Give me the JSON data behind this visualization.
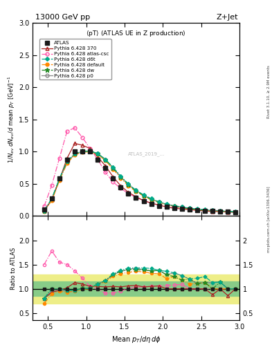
{
  "title_top": "13000 GeV pp",
  "title_right": "Z+Jet",
  "subtitle": "<pT> (ATLAS UE in Z production)",
  "ylabel_main": "1/N_{ev} dN_{ev}/d mean p_T [GeV]^{-1}",
  "ylabel_ratio": "Ratio to ATLAS",
  "xlabel": "Mean p_{T}/d\\eta d\\phi",
  "right_label_top": "Rivet 3.1.10, ≥ 2.9M events",
  "right_label_bottom": "mcplots.cern.ch [arXiv:1306.3436]",
  "watermark": "ATLAS_2019_...",
  "xlim": [
    0.3,
    3.0
  ],
  "ylim_main": [
    0.0,
    3.0
  ],
  "ylim_ratio": [
    0.35,
    2.5
  ],
  "x_atlas": [
    0.45,
    0.55,
    0.65,
    0.75,
    0.85,
    0.95,
    1.05,
    1.15,
    1.25,
    1.35,
    1.45,
    1.55,
    1.65,
    1.75,
    1.85,
    1.95,
    2.05,
    2.15,
    2.25,
    2.35,
    2.45,
    2.55,
    2.65,
    2.75,
    2.85,
    2.95
  ],
  "y_atlas": [
    0.1,
    0.27,
    0.58,
    0.88,
    1.0,
    1.0,
    1.0,
    0.88,
    0.75,
    0.58,
    0.45,
    0.35,
    0.28,
    0.23,
    0.19,
    0.16,
    0.14,
    0.12,
    0.11,
    0.1,
    0.09,
    0.08,
    0.08,
    0.07,
    0.07,
    0.06
  ],
  "x_370": [
    0.45,
    0.55,
    0.65,
    0.75,
    0.85,
    0.95,
    1.05,
    1.15,
    1.25,
    1.35,
    1.45,
    1.55,
    1.65,
    1.75,
    1.85,
    1.95,
    2.05,
    2.15,
    2.25,
    2.35,
    2.45,
    2.55,
    2.65,
    2.75,
    2.85,
    2.95
  ],
  "y_370": [
    0.08,
    0.25,
    0.56,
    0.9,
    1.13,
    1.1,
    1.05,
    0.92,
    0.78,
    0.61,
    0.47,
    0.37,
    0.3,
    0.24,
    0.2,
    0.17,
    0.14,
    0.12,
    0.11,
    0.1,
    0.09,
    0.08,
    0.07,
    0.07,
    0.06,
    0.06
  ],
  "x_atlascsc": [
    0.45,
    0.55,
    0.65,
    0.75,
    0.85,
    0.95,
    1.05,
    1.15,
    1.25,
    1.35,
    1.45,
    1.55,
    1.65,
    1.75,
    1.85,
    1.95,
    2.05,
    2.15,
    2.25,
    2.35,
    2.45,
    2.55,
    2.65,
    2.75,
    2.85,
    2.95
  ],
  "y_atlascsc": [
    0.15,
    0.48,
    0.9,
    1.32,
    1.37,
    1.22,
    1.05,
    0.88,
    0.68,
    0.53,
    0.43,
    0.35,
    0.29,
    0.24,
    0.2,
    0.17,
    0.15,
    0.13,
    0.12,
    0.1,
    0.09,
    0.08,
    0.08,
    0.07,
    0.07,
    0.06
  ],
  "x_d6t": [
    0.45,
    0.55,
    0.65,
    0.75,
    0.85,
    0.95,
    1.05,
    1.15,
    1.25,
    1.35,
    1.45,
    1.55,
    1.65,
    1.75,
    1.85,
    1.95,
    2.05,
    2.15,
    2.25,
    2.35,
    2.45,
    2.55,
    2.65,
    2.75,
    2.85,
    2.95
  ],
  "y_d6t": [
    0.08,
    0.27,
    0.58,
    0.85,
    0.97,
    1.0,
    1.01,
    0.97,
    0.88,
    0.76,
    0.62,
    0.5,
    0.4,
    0.33,
    0.27,
    0.22,
    0.19,
    0.16,
    0.14,
    0.12,
    0.11,
    0.1,
    0.09,
    0.08,
    0.07,
    0.07
  ],
  "x_default": [
    0.45,
    0.55,
    0.65,
    0.75,
    0.85,
    0.95,
    1.05,
    1.15,
    1.25,
    1.35,
    1.45,
    1.55,
    1.65,
    1.75,
    1.85,
    1.95,
    2.05,
    2.15,
    2.25,
    2.35,
    2.45,
    2.55,
    2.65,
    2.75,
    2.85,
    2.95
  ],
  "y_default": [
    0.07,
    0.24,
    0.55,
    0.82,
    0.95,
    0.99,
    1.0,
    0.96,
    0.86,
    0.73,
    0.59,
    0.47,
    0.38,
    0.31,
    0.25,
    0.21,
    0.17,
    0.15,
    0.13,
    0.11,
    0.1,
    0.09,
    0.08,
    0.07,
    0.07,
    0.06
  ],
  "x_dw": [
    0.45,
    0.55,
    0.65,
    0.75,
    0.85,
    0.95,
    1.05,
    1.15,
    1.25,
    1.35,
    1.45,
    1.55,
    1.65,
    1.75,
    1.85,
    1.95,
    2.05,
    2.15,
    2.25,
    2.35,
    2.45,
    2.55,
    2.65,
    2.75,
    2.85,
    2.95
  ],
  "y_dw": [
    0.08,
    0.27,
    0.58,
    0.85,
    0.97,
    1.01,
    1.01,
    0.97,
    0.88,
    0.75,
    0.61,
    0.49,
    0.39,
    0.32,
    0.26,
    0.22,
    0.18,
    0.15,
    0.13,
    0.12,
    0.1,
    0.09,
    0.08,
    0.08,
    0.07,
    0.06
  ],
  "x_p0": [
    0.45,
    0.55,
    0.65,
    0.75,
    0.85,
    0.95,
    1.05,
    1.15,
    1.25,
    1.35,
    1.45,
    1.55,
    1.65,
    1.75,
    1.85,
    1.95,
    2.05,
    2.15,
    2.25,
    2.35,
    2.45,
    2.55,
    2.65,
    2.75,
    2.85,
    2.95
  ],
  "y_p0": [
    0.08,
    0.26,
    0.57,
    0.84,
    0.96,
    1.0,
    1.01,
    0.97,
    0.88,
    0.75,
    0.61,
    0.49,
    0.4,
    0.32,
    0.26,
    0.22,
    0.18,
    0.16,
    0.14,
    0.12,
    0.1,
    0.09,
    0.09,
    0.08,
    0.07,
    0.06
  ],
  "color_atlas": "#1a1a1a",
  "color_370": "#aa2222",
  "color_atlascsc": "#ff55aa",
  "color_d6t": "#00aa88",
  "color_default": "#ff8800",
  "color_dw": "#228822",
  "color_p0": "#888888",
  "band_yellow_lo": 0.7,
  "band_yellow_hi": 1.3,
  "band_green_lo": 0.85,
  "band_green_hi": 1.15,
  "ratio_370": [
    0.8,
    0.93,
    0.97,
    1.02,
    1.13,
    1.1,
    1.05,
    1.05,
    1.04,
    1.05,
    1.04,
    1.06,
    1.07,
    1.04,
    1.05,
    1.06,
    1.0,
    1.0,
    1.0,
    1.0,
    1.0,
    1.0,
    0.88,
    1.0,
    0.86,
    1.0
  ],
  "ratio_atlascsc": [
    1.5,
    1.78,
    1.55,
    1.5,
    1.37,
    1.22,
    1.05,
    1.0,
    0.91,
    0.91,
    0.96,
    1.0,
    1.04,
    1.04,
    1.05,
    1.06,
    1.07,
    1.08,
    1.09,
    1.0,
    1.0,
    1.0,
    1.0,
    1.0,
    1.0,
    1.0
  ],
  "ratio_d6t": [
    0.8,
    1.0,
    1.0,
    0.97,
    0.97,
    1.0,
    1.01,
    1.1,
    1.17,
    1.31,
    1.38,
    1.43,
    1.43,
    1.43,
    1.42,
    1.38,
    1.36,
    1.33,
    1.27,
    1.2,
    1.22,
    1.25,
    1.13,
    1.14,
    1.0,
    1.0
  ],
  "ratio_default": [
    0.7,
    0.89,
    0.95,
    0.93,
    0.95,
    0.99,
    1.0,
    1.09,
    1.15,
    1.26,
    1.31,
    1.34,
    1.36,
    1.35,
    1.32,
    1.31,
    1.21,
    1.25,
    1.18,
    1.1,
    1.11,
    1.13,
    1.0,
    1.0,
    1.0,
    1.0
  ],
  "ratio_dw": [
    0.8,
    1.0,
    1.0,
    0.97,
    0.97,
    1.01,
    1.01,
    1.1,
    1.17,
    1.29,
    1.36,
    1.4,
    1.39,
    1.39,
    1.37,
    1.38,
    1.29,
    1.25,
    1.18,
    1.2,
    1.11,
    1.13,
    1.0,
    1.14,
    1.0,
    1.0
  ],
  "ratio_p0": [
    0.8,
    0.96,
    0.98,
    0.95,
    0.96,
    1.0,
    1.01,
    1.1,
    1.17,
    1.29,
    1.36,
    1.4,
    1.43,
    1.39,
    1.37,
    1.38,
    1.29,
    1.33,
    1.27,
    1.2,
    1.11,
    1.13,
    1.13,
    1.14,
    1.0,
    1.0
  ]
}
